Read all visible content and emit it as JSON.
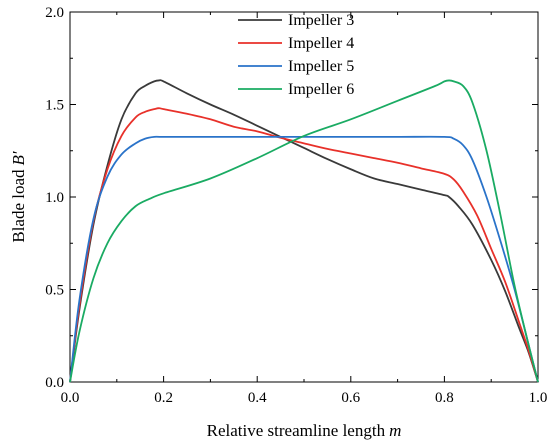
{
  "chart_data": {
    "type": "line",
    "title": "",
    "xlabel": "Relative streamline length",
    "xlabel_var": "m",
    "ylabel": "Blade load",
    "ylabel_var": "B′",
    "xlim": [
      0.0,
      1.0
    ],
    "ylim": [
      0.0,
      2.0
    ],
    "xticks": [
      "0.0",
      "0.2",
      "0.4",
      "0.6",
      "0.8",
      "1.0"
    ],
    "yticks": [
      "0.0",
      "0.5",
      "1.0",
      "1.5",
      "2.0"
    ],
    "grid": false,
    "legend_position": "top-center",
    "series": [
      {
        "name": "Impeller 3",
        "color": "#3a3a3a",
        "x": [
          0.0,
          0.02,
          0.05,
          0.08,
          0.11,
          0.14,
          0.16,
          0.18,
          0.19,
          0.2,
          0.25,
          0.3,
          0.35,
          0.4,
          0.45,
          0.5,
          0.55,
          0.6,
          0.65,
          0.7,
          0.75,
          0.8,
          0.81,
          0.83,
          0.86,
          0.9,
          0.93,
          0.96,
          0.98,
          1.0
        ],
        "y": [
          0.0,
          0.39,
          0.85,
          1.17,
          1.42,
          1.56,
          1.6,
          1.625,
          1.63,
          1.625,
          1.56,
          1.5,
          1.445,
          1.385,
          1.325,
          1.265,
          1.205,
          1.15,
          1.1,
          1.07,
          1.04,
          1.01,
          1.0,
          0.95,
          0.85,
          0.66,
          0.49,
          0.29,
          0.16,
          0.0
        ]
      },
      {
        "name": "Impeller 4",
        "color": "#e8312a",
        "x": [
          0.0,
          0.02,
          0.05,
          0.08,
          0.11,
          0.14,
          0.16,
          0.18,
          0.19,
          0.2,
          0.25,
          0.3,
          0.35,
          0.4,
          0.45,
          0.5,
          0.55,
          0.6,
          0.65,
          0.7,
          0.75,
          0.8,
          0.82,
          0.84,
          0.87,
          0.9,
          0.93,
          0.96,
          0.98,
          1.0
        ],
        "y": [
          0.0,
          0.41,
          0.87,
          1.15,
          1.33,
          1.43,
          1.46,
          1.475,
          1.48,
          1.475,
          1.45,
          1.42,
          1.38,
          1.355,
          1.32,
          1.29,
          1.26,
          1.235,
          1.21,
          1.185,
          1.155,
          1.125,
          1.095,
          1.03,
          0.9,
          0.72,
          0.54,
          0.32,
          0.17,
          0.0
        ]
      },
      {
        "name": "Impeller 5",
        "color": "#2a73c9",
        "x": [
          0.0,
          0.02,
          0.05,
          0.08,
          0.11,
          0.14,
          0.16,
          0.18,
          0.2,
          0.3,
          0.4,
          0.5,
          0.6,
          0.7,
          0.8,
          0.82,
          0.84,
          0.86,
          0.89,
          0.92,
          0.95,
          0.98,
          1.0
        ],
        "y": [
          0.0,
          0.44,
          0.88,
          1.11,
          1.23,
          1.29,
          1.315,
          1.325,
          1.325,
          1.325,
          1.325,
          1.325,
          1.325,
          1.325,
          1.325,
          1.315,
          1.28,
          1.2,
          1.0,
          0.76,
          0.5,
          0.2,
          0.0
        ]
      },
      {
        "name": "Impeller 6",
        "color": "#1aab63",
        "x": [
          0.0,
          0.02,
          0.05,
          0.08,
          0.11,
          0.14,
          0.17,
          0.2,
          0.3,
          0.4,
          0.5,
          0.6,
          0.7,
          0.78,
          0.8,
          0.81,
          0.82,
          0.84,
          0.86,
          0.89,
          0.92,
          0.95,
          0.98,
          1.0
        ],
        "y": [
          0.0,
          0.27,
          0.56,
          0.75,
          0.87,
          0.95,
          0.99,
          1.02,
          1.1,
          1.21,
          1.33,
          1.42,
          1.52,
          1.6,
          1.625,
          1.63,
          1.625,
          1.6,
          1.51,
          1.25,
          0.9,
          0.52,
          0.2,
          0.0
        ]
      }
    ]
  }
}
